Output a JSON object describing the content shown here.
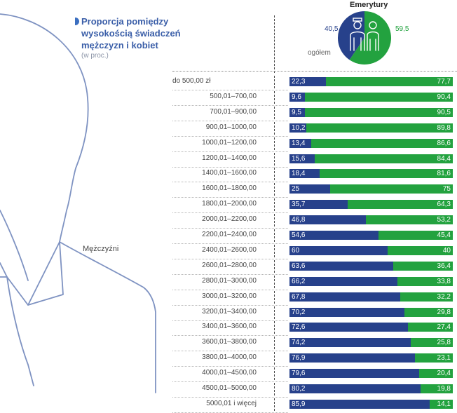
{
  "chart_data": {
    "type": "bar",
    "stacked": true,
    "title": "Proporcja pomiędzy\nwysokością świadczeń\nmężczyzn i kobiet",
    "subtitle": "(w proc.)",
    "left_label": "Mężczyźni",
    "categories": [
      "do 500,00 zł",
      "500,01–700,00",
      "700,01–900,00",
      "900,01–1000,00",
      "1000,01–1200,00",
      "1200,01–1400,00",
      "1400,01–1600,00",
      "1600,01–1800,00",
      "1800,01–2000,00",
      "2000,01–2200,00",
      "2200,01–2400,00",
      "2400,01–2600,00",
      "2600,01–2800,00",
      "2800,01–3000,00",
      "3000,01–3200,00",
      "3200,01–3400,00",
      "3400,01–3600,00",
      "3600,01–3800,00",
      "3800,01–4000,00",
      "4000,01–4500,00",
      "4500,01–5000,00",
      "5000,01 i więcej"
    ],
    "series": [
      {
        "color": "#27418b",
        "values": [
          22.3,
          9.6,
          9.5,
          10.2,
          13.4,
          15.6,
          18.4,
          25,
          35.7,
          46.8,
          54.6,
          60,
          63.6,
          66.2,
          67.8,
          70.2,
          72.6,
          74.2,
          76.9,
          79.6,
          80.2,
          85.9
        ]
      },
      {
        "color": "#23a23f",
        "values": [
          77.7,
          90.4,
          90.5,
          89.8,
          86.6,
          84.4,
          81.6,
          75,
          64.3,
          53.2,
          45.4,
          40,
          36.4,
          33.8,
          32.2,
          29.8,
          27.4,
          25.8,
          23.1,
          20.4,
          19.8,
          14.1
        ]
      }
    ],
    "ylim": [
      0,
      100
    ],
    "pie": {
      "title": "Emerytury",
      "label": "ogółem",
      "men": 40.5,
      "women": 59.5,
      "men_label": "40,5",
      "women_label": "59,5"
    }
  }
}
